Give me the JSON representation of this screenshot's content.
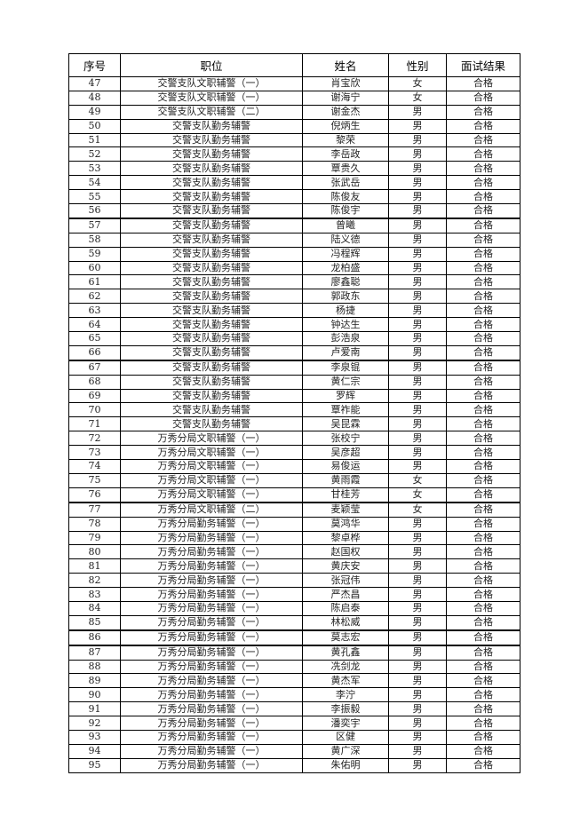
{
  "table": {
    "headers": [
      "序号",
      "职位",
      "姓名",
      "性别",
      "面试结果"
    ],
    "rows": [
      [
        "47",
        "交警支队文职辅警（一）",
        "肖宝欣",
        "女",
        "合格"
      ],
      [
        "48",
        "交警支队文职辅警（一）",
        "谢海宁",
        "女",
        "合格"
      ],
      [
        "49",
        "交警支队文职辅警（二）",
        "谢金杰",
        "男",
        "合格"
      ],
      [
        "50",
        "交警支队勤务辅警",
        "倪炳生",
        "男",
        "合格"
      ],
      [
        "51",
        "交警支队勤务辅警",
        "黎荣",
        "男",
        "合格"
      ],
      [
        "52",
        "交警支队勤务辅警",
        "李岳政",
        "男",
        "合格"
      ],
      [
        "53",
        "交警支队勤务辅警",
        "覃贵久",
        "男",
        "合格"
      ],
      [
        "54",
        "交警支队勤务辅警",
        "张武岳",
        "男",
        "合格"
      ],
      [
        "55",
        "交警支队勤务辅警",
        "陈俊友",
        "男",
        "合格"
      ],
      [
        "56",
        "交警支队勤务辅警",
        "陈俊宇",
        "男",
        "合格"
      ],
      [
        "57",
        "交警支队勤务辅警",
        "曾曦",
        "男",
        "合格"
      ],
      [
        "58",
        "交警支队勤务辅警",
        "陆义德",
        "男",
        "合格"
      ],
      [
        "59",
        "交警支队勤务辅警",
        "冯程辉",
        "男",
        "合格"
      ],
      [
        "60",
        "交警支队勤务辅警",
        "龙柏盛",
        "男",
        "合格"
      ],
      [
        "61",
        "交警支队勤务辅警",
        "廖鑫聪",
        "男",
        "合格"
      ],
      [
        "62",
        "交警支队勤务辅警",
        "郭政东",
        "男",
        "合格"
      ],
      [
        "63",
        "交警支队勤务辅警",
        "杨捷",
        "男",
        "合格"
      ],
      [
        "64",
        "交警支队勤务辅警",
        "钟达生",
        "男",
        "合格"
      ],
      [
        "65",
        "交警支队勤务辅警",
        "彭浩泉",
        "男",
        "合格"
      ],
      [
        "66",
        "交警支队勤务辅警",
        "卢爱南",
        "男",
        "合格"
      ],
      [
        "67",
        "交警支队勤务辅警",
        "李泉锟",
        "男",
        "合格"
      ],
      [
        "68",
        "交警支队勤务辅警",
        "黄仁宗",
        "男",
        "合格"
      ],
      [
        "69",
        "交警支队勤务辅警",
        "罗辉",
        "男",
        "合格"
      ],
      [
        "70",
        "交警支队勤务辅警",
        "覃祚能",
        "男",
        "合格"
      ],
      [
        "71",
        "交警支队勤务辅警",
        "吴昆霖",
        "男",
        "合格"
      ],
      [
        "72",
        "万秀分局文职辅警（一）",
        "张校宁",
        "男",
        "合格"
      ],
      [
        "73",
        "万秀分局文职辅警（一）",
        "吴彦超",
        "男",
        "合格"
      ],
      [
        "74",
        "万秀分局文职辅警（一）",
        "易俊运",
        "男",
        "合格"
      ],
      [
        "75",
        "万秀分局文职辅警（一）",
        "黄雨霞",
        "女",
        "合格"
      ],
      [
        "76",
        "万秀分局文职辅警（一）",
        "甘桂芳",
        "女",
        "合格"
      ],
      [
        "77",
        "万秀分局文职辅警（二）",
        "麦颖莹",
        "女",
        "合格"
      ],
      [
        "78",
        "万秀分局勤务辅警（一）",
        "莫鸿华",
        "男",
        "合格"
      ],
      [
        "79",
        "万秀分局勤务辅警（一）",
        "黎卓桦",
        "男",
        "合格"
      ],
      [
        "80",
        "万秀分局勤务辅警（一）",
        "赵国权",
        "男",
        "合格"
      ],
      [
        "81",
        "万秀分局勤务辅警（一）",
        "黄庆安",
        "男",
        "合格"
      ],
      [
        "82",
        "万秀分局勤务辅警（一）",
        "张冠伟",
        "男",
        "合格"
      ],
      [
        "83",
        "万秀分局勤务辅警（一）",
        "严杰昌",
        "男",
        "合格"
      ],
      [
        "84",
        "万秀分局勤务辅警（一）",
        "陈启泰",
        "男",
        "合格"
      ],
      [
        "85",
        "万秀分局勤务辅警（一）",
        "林松威",
        "男",
        "合格"
      ],
      [
        "86",
        "万秀分局勤务辅警（一）",
        "莫志宏",
        "男",
        "合格"
      ],
      [
        "87",
        "万秀分局勤务辅警（一）",
        "黄孔鑫",
        "男",
        "合格"
      ],
      [
        "88",
        "万秀分局勤务辅警（一）",
        "冼剑龙",
        "男",
        "合格"
      ],
      [
        "89",
        "万秀分局勤务辅警（一）",
        "黄杰军",
        "男",
        "合格"
      ],
      [
        "90",
        "万秀分局勤务辅警（一）",
        "李泞",
        "男",
        "合格"
      ],
      [
        "91",
        "万秀分局勤务辅警（一）",
        "李振毅",
        "男",
        "合格"
      ],
      [
        "92",
        "万秀分局勤务辅警（一）",
        "潘奕宇",
        "男",
        "合格"
      ],
      [
        "93",
        "万秀分局勤务辅警（一）",
        "区健",
        "男",
        "合格"
      ],
      [
        "94",
        "万秀分局勤务辅警（一）",
        "黄广深",
        "男",
        "合格"
      ],
      [
        "95",
        "万秀分局勤务辅警（一）",
        "朱佑明",
        "男",
        "合格"
      ]
    ]
  }
}
